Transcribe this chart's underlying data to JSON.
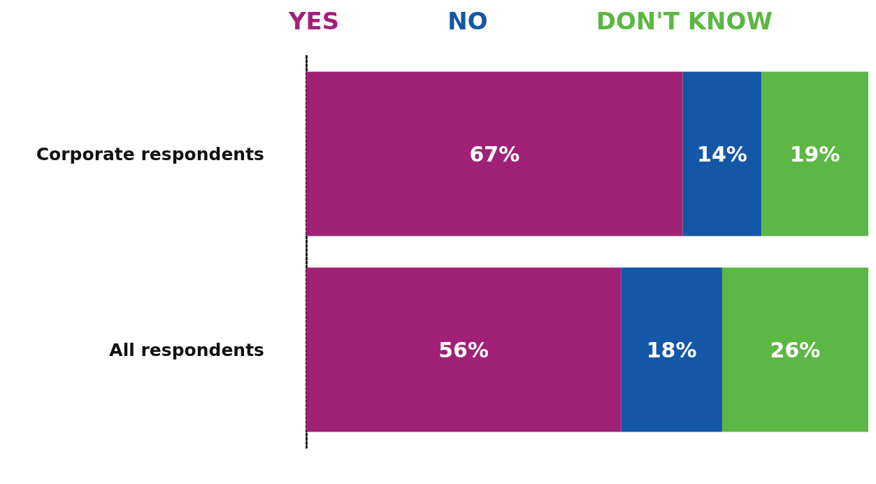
{
  "chart_data": {
    "type": "bar",
    "orientation": "horizontal",
    "stacked": true,
    "categories": [
      "Corporate respondents",
      "All respondents"
    ],
    "series": [
      {
        "name": "YES",
        "color": "#a12176",
        "values": [
          67,
          56
        ],
        "value_labels": [
          "67%",
          "56%"
        ]
      },
      {
        "name": "NO",
        "color": "#1457a6",
        "values": [
          14,
          18
        ],
        "value_labels": [
          "14%",
          "18%"
        ]
      },
      {
        "name": "DON'T KNOW",
        "color": "#5db744",
        "values": [
          19,
          26
        ],
        "value_labels": [
          "19%",
          "26%"
        ]
      }
    ],
    "xlim": [
      0,
      100
    ],
    "tick_labels": "y",
    "legend": "top"
  }
}
